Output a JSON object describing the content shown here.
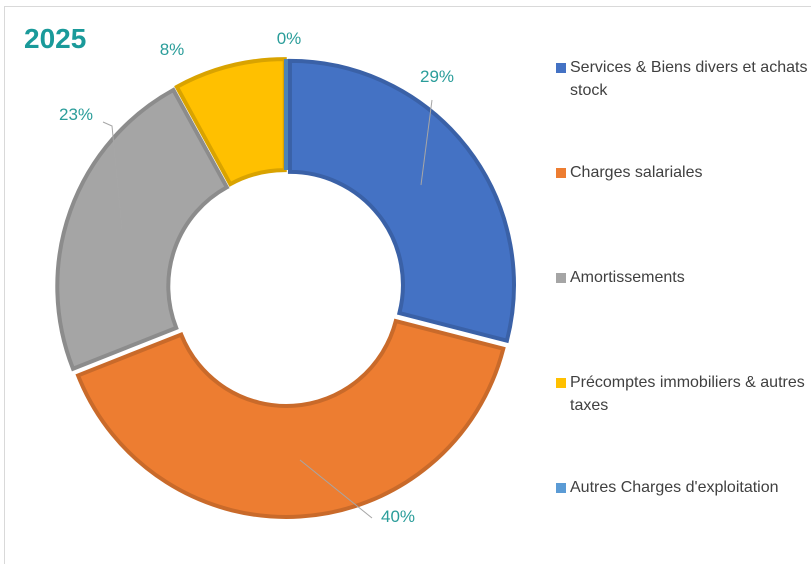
{
  "chart_data": {
    "type": "donut",
    "title": "2025",
    "categories": [
      "Services & Biens divers et achats stock",
      "Charges salariales",
      "Amortissements",
      "Précomptes immobiliers & autres taxes",
      "Autres Charges d'exploitation"
    ],
    "values": [
      29,
      40,
      23,
      8,
      0
    ],
    "value_labels": [
      "29%",
      "40%",
      "23%",
      "8%",
      "0%"
    ],
    "colors": [
      "#4472c4",
      "#ed7d31",
      "#a5a5a5",
      "#ffc000",
      "#5b9bd5"
    ],
    "legend": "right"
  }
}
